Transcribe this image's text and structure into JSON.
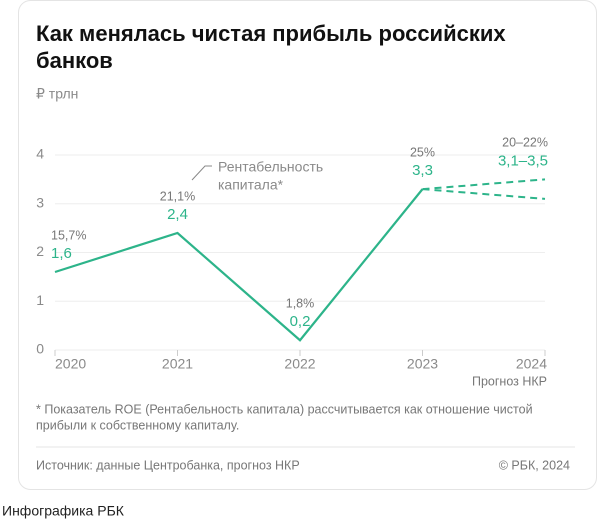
{
  "chart_data": {
    "type": "line",
    "title_lines": [
      "Как менялась чистая прибыль российских",
      "банков"
    ],
    "unit_label": "₽ трлн",
    "categories": [
      "2020",
      "2021",
      "2022",
      "2023",
      "2024"
    ],
    "x_sublabel": "Прогноз НКР",
    "series": [
      {
        "color": "#2db48a",
        "values": [
          1.6,
          2.4,
          0.2,
          3.3,
          null
        ],
        "value_labels": [
          "1,6",
          "2,4",
          "0,2",
          "3,3",
          null
        ]
      }
    ],
    "forecast": {
      "color": "#2db48a",
      "high": [
        3.3,
        3.5
      ],
      "low": [
        3.3,
        3.1
      ],
      "label": "3,1–3,5"
    },
    "roe_labels": [
      "15,7%",
      "21,1%",
      "1,8%",
      "25%",
      "20–22%"
    ],
    "annotation_lines": [
      "Рентабельность",
      "капитала*"
    ],
    "ylim": [
      0,
      4
    ],
    "yticks": [
      0,
      1,
      2,
      3,
      4
    ],
    "grid": true,
    "footnote_lines": [
      "* Показатель ROE (Рентабельность капитала) рассчитывается как отношение чистой",
      "прибыли к собственному капиталу."
    ],
    "source": "Источник: данные Центробанка, прогноз НКР",
    "copyright": "© РБК, 2024",
    "caption": "Инфографика РБК"
  }
}
